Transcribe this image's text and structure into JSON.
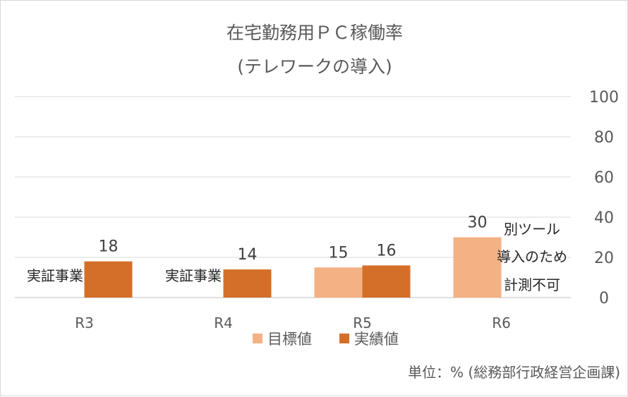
{
  "chart_data": {
    "type": "bar",
    "title": "在宅勤務用ＰＣ稼働率",
    "subtitle": "(テレワークの導入)",
    "categories": [
      "R3",
      "R4",
      "R5",
      "R6"
    ],
    "series": [
      {
        "name": "目標値",
        "color": "#f4b183",
        "values": [
          null,
          null,
          15,
          30
        ]
      },
      {
        "name": "実績値",
        "color": "#d46f2a",
        "values": [
          18,
          14,
          16,
          null
        ]
      }
    ],
    "data_labels": {
      "目標値": [
        null,
        null,
        "15",
        "30"
      ],
      "実績値": [
        "18",
        "14",
        "16",
        null
      ]
    },
    "ylim": [
      0,
      100
    ],
    "yticks": [
      "0",
      "20",
      "40",
      "60",
      "80",
      "100"
    ],
    "grid": true,
    "legend_position": "bottom",
    "annotations": {
      "r3_note": "実証事業",
      "r4_note": "実証事業",
      "r6_note_lines": [
        "別ツール",
        "導入のため",
        "計測不可"
      ]
    },
    "unit_note": "単位：% (総務部行政経営企画課)"
  }
}
